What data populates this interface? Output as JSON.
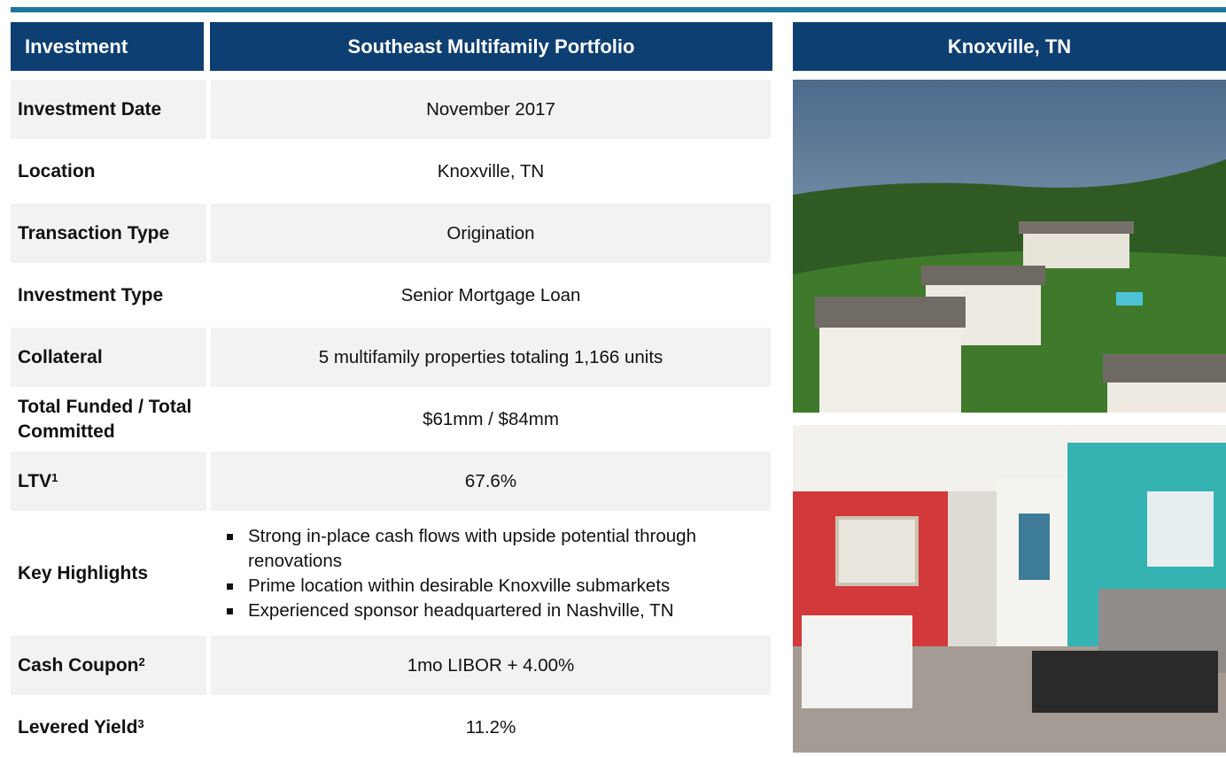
{
  "header": {
    "left": "Investment",
    "center": "Southeast Multifamily Portfolio",
    "right": "Knoxville, TN"
  },
  "rows": [
    {
      "label": "Investment Date",
      "value": "November 2017"
    },
    {
      "label": "Location",
      "value": "Knoxville, TN"
    },
    {
      "label": "Transaction Type",
      "value": "Origination"
    },
    {
      "label": "Investment Type",
      "value": "Senior Mortgage Loan"
    },
    {
      "label": "Collateral",
      "value": "5 multifamily properties totaling 1,166 units"
    },
    {
      "label": "Total Funded / Total Committed",
      "value": "$61mm / $84mm"
    },
    {
      "label": "LTV",
      "sup": "1",
      "value": "67.6%"
    },
    {
      "label": "Key Highlights",
      "bullets": [
        "Strong in-place cash flows with upside potential through renovations",
        "Prime location within desirable Knoxville submarkets",
        "Experienced sponsor headquartered in Nashville, TN"
      ]
    },
    {
      "label": "Cash Coupon",
      "sup": "2",
      "value": "1mo LIBOR + 4.00%"
    },
    {
      "label": "Levered Yield",
      "sup": "3",
      "value": "11.2%"
    }
  ]
}
